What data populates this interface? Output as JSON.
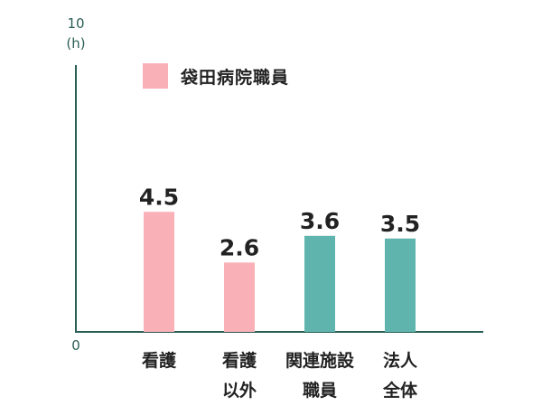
{
  "chart_data": {
    "type": "bar",
    "categories": [
      "看護",
      "看護\n以外",
      "関連施設\n職員",
      "法人\n全体"
    ],
    "values": [
      4.5,
      2.6,
      3.6,
      3.5
    ],
    "value_labels": [
      "4.5",
      "2.6",
      "3.6",
      "3.5"
    ],
    "bar_colors": [
      "#f9b0b6",
      "#f9b0b6",
      "#5fb5ad",
      "#5fb5ad"
    ],
    "ylim": [
      0,
      10
    ],
    "y_tick_labels": [
      "0",
      "10"
    ],
    "y_unit": "(h)",
    "legend": [
      {
        "name": "袋田病院職員",
        "color": "#f9b0b6"
      }
    ],
    "legend_placement": "top-left",
    "grid": false,
    "axis_color": "#2b5e55"
  }
}
